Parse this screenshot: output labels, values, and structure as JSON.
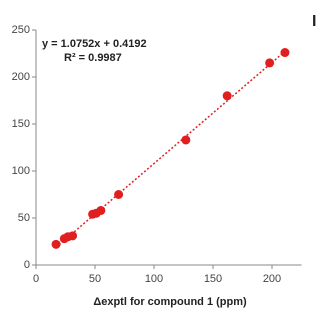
{
  "chart_data": {
    "type": "scatter",
    "x_label": "Δexptl for compound 1 (ppm)",
    "panel_label": "I",
    "equation": "y = 1.0752x + 0.4192",
    "r_squared": "R² = 0.9987",
    "trendline": {
      "slope": 1.0752,
      "intercept": 0.4192,
      "color": "#e02020"
    },
    "x": [
      17,
      24,
      27,
      31,
      48,
      51,
      55,
      70,
      127,
      162,
      198,
      211
    ],
    "values": [
      22,
      28,
      30,
      31,
      54,
      55,
      58,
      75,
      133,
      180,
      215,
      226
    ],
    "color": "#e02020",
    "xlim": [
      0,
      225
    ],
    "xticks": [
      0,
      50,
      100,
      150,
      200
    ],
    "ylim": [
      0,
      250
    ],
    "yticks": [
      0,
      50,
      100,
      150,
      200,
      250
    ]
  }
}
